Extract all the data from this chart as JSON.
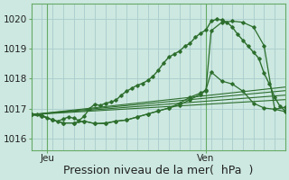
{
  "bg_color": "#cce8e0",
  "grid_color": "#aacccc",
  "line_color": "#2d6e2d",
  "ylabel_ticks": [
    1016,
    1017,
    1018,
    1019,
    1020
  ],
  "ylim": [
    1015.6,
    1020.5
  ],
  "xlim": [
    0,
    48
  ],
  "xlabel": "Pression niveau de la mer(  hPa  )",
  "xlabel_fontsize": 9,
  "tick_fontsize": 7.5,
  "xtick_labels": [
    "Jeu",
    "Ven"
  ],
  "xtick_positions": [
    3,
    33
  ],
  "vline_positions": [
    3,
    33
  ],
  "num_vgrid": 25,
  "main_x": [
    0,
    1,
    2,
    3,
    4,
    5,
    6,
    7,
    8,
    9,
    10,
    11,
    12,
    13,
    14,
    15,
    16,
    17,
    18,
    19,
    20,
    21,
    22,
    23,
    24,
    25,
    26,
    27,
    28,
    29,
    30,
    31,
    32,
    33,
    34,
    35,
    36,
    37,
    38,
    39,
    40,
    41,
    42,
    43,
    44,
    45,
    46,
    47,
    48
  ],
  "main_y": [
    1016.8,
    1016.82,
    1016.78,
    1016.7,
    1016.62,
    1016.58,
    1016.65,
    1016.72,
    1016.68,
    1016.6,
    1016.75,
    1017.0,
    1017.15,
    1017.1,
    1017.18,
    1017.22,
    1017.28,
    1017.45,
    1017.58,
    1017.68,
    1017.78,
    1017.84,
    1017.94,
    1018.08,
    1018.28,
    1018.52,
    1018.72,
    1018.82,
    1018.92,
    1019.08,
    1019.18,
    1019.38,
    1019.52,
    1019.62,
    1019.92,
    1019.98,
    1019.96,
    1019.88,
    1019.72,
    1019.48,
    1019.28,
    1019.08,
    1018.88,
    1018.68,
    1018.18,
    1017.82,
    1017.38,
    1017.08,
    1016.92
  ],
  "curve2_x": [
    0,
    2,
    4,
    6,
    8,
    10,
    12,
    14,
    16,
    18,
    20,
    22,
    24,
    26,
    28,
    30,
    32,
    33,
    34,
    36,
    38,
    40,
    42,
    44,
    46,
    48
  ],
  "curve2_y": [
    1016.8,
    1016.75,
    1016.62,
    1016.52,
    1016.52,
    1016.58,
    1016.5,
    1016.52,
    1016.58,
    1016.62,
    1016.72,
    1016.82,
    1016.92,
    1017.02,
    1017.18,
    1017.38,
    1017.52,
    1017.62,
    1018.22,
    1017.92,
    1017.82,
    1017.58,
    1017.18,
    1017.02,
    1016.98,
    1017.05
  ],
  "curve3_x": [
    0,
    2,
    4,
    6,
    8,
    10,
    12,
    14,
    16,
    18,
    20,
    22,
    24,
    26,
    28,
    30,
    32,
    33,
    34,
    36,
    38,
    40,
    42,
    44,
    46,
    48
  ],
  "curve3_y": [
    1016.8,
    1016.75,
    1016.62,
    1016.52,
    1016.52,
    1016.58,
    1016.5,
    1016.5,
    1016.58,
    1016.62,
    1016.72,
    1016.82,
    1016.92,
    1017.02,
    1017.12,
    1017.3,
    1017.48,
    1017.6,
    1019.6,
    1019.88,
    1019.92,
    1019.88,
    1019.72,
    1019.1,
    1016.98,
    1016.9
  ],
  "fan_lines": [
    {
      "x": [
        0,
        48
      ],
      "y": [
        1016.8,
        1017.3
      ]
    },
    {
      "x": [
        0,
        48
      ],
      "y": [
        1016.8,
        1017.45
      ]
    },
    {
      "x": [
        0,
        48
      ],
      "y": [
        1016.8,
        1017.6
      ]
    },
    {
      "x": [
        0,
        48
      ],
      "y": [
        1016.8,
        1017.72
      ]
    }
  ]
}
